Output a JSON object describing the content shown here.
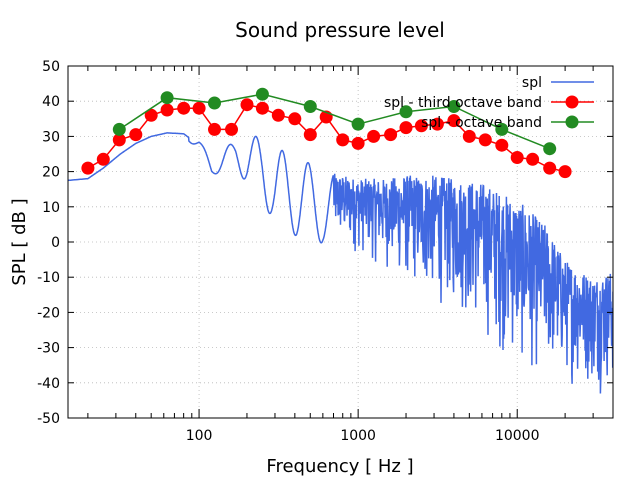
{
  "chart_data": {
    "type": "line",
    "title": "Sound pressure level",
    "xlabel": "Frequency [ Hz ]",
    "ylabel": "SPL [ dB ]",
    "xscale": "log",
    "xlim": [
      15,
      40000
    ],
    "ylim": [
      -50,
      50
    ],
    "xticks": [
      100,
      1000,
      10000
    ],
    "xtick_labels": [
      "100",
      "1000",
      "10000"
    ],
    "yticks": [
      -50,
      -40,
      -30,
      -20,
      -10,
      0,
      10,
      20,
      30,
      40,
      50
    ],
    "ytick_labels": [
      "-50",
      "-40",
      "-30",
      "-20",
      "-10",
      "0",
      "10",
      "20",
      "30",
      "40",
      "50"
    ],
    "grid": true,
    "legend_position": "top-right",
    "series": [
      {
        "name": "spl",
        "color": "#4169e1",
        "marker": "none",
        "envelope": {
          "x": [
            15,
            20,
            25,
            32,
            40,
            50,
            63,
            80,
            100,
            120,
            140,
            170,
            200,
            250,
            300,
            400,
            500,
            600,
            800,
            1000,
            1500,
            2000,
            3000,
            4000,
            6000,
            8000,
            10000,
            15000,
            20000,
            30000,
            40000
          ],
          "upper": [
            17.5,
            18,
            21,
            25,
            28,
            30,
            31,
            31.5,
            29,
            23,
            26,
            29,
            30,
            30,
            26,
            26,
            22,
            20,
            19,
            18,
            18,
            19,
            19,
            18,
            17,
            14,
            12,
            5,
            -5,
            -10,
            -8
          ],
          "lower": [
            17.5,
            18,
            21,
            25,
            28,
            30,
            31,
            30,
            26,
            19,
            20,
            22,
            16,
            12,
            5,
            2,
            -2,
            0,
            -4,
            -5,
            -10,
            -15,
            -20,
            -22,
            -30,
            -35,
            -40,
            -42,
            -42,
            -44,
            -45
          ]
        }
      },
      {
        "name": "spl - third octave band",
        "color": "#ff0000",
        "marker": "circle",
        "x": [
          20,
          25,
          31.5,
          40,
          50,
          63,
          80,
          100,
          125,
          160,
          200,
          250,
          315,
          400,
          500,
          630,
          800,
          1000,
          1250,
          1600,
          2000,
          2500,
          3150,
          4000,
          5000,
          6300,
          8000,
          10000,
          12500,
          16000,
          20000
        ],
        "y": [
          21,
          23.5,
          29,
          30.5,
          36,
          37.5,
          38,
          38,
          32,
          32,
          39,
          38,
          36,
          35,
          30.5,
          35.5,
          29,
          28,
          30,
          30.5,
          32.5,
          33,
          33.5,
          34.5,
          30,
          29,
          27.5,
          24,
          23.5,
          21,
          20
        ]
      },
      {
        "name": "spl - octave band",
        "color": "#228b22",
        "marker": "circle",
        "x": [
          31.5,
          63,
          125,
          250,
          500,
          1000,
          2000,
          4000,
          8000,
          16000
        ],
        "y": [
          32,
          41,
          39.5,
          42,
          38.5,
          33.5,
          37,
          38.5,
          32,
          26.5
        ]
      }
    ]
  }
}
